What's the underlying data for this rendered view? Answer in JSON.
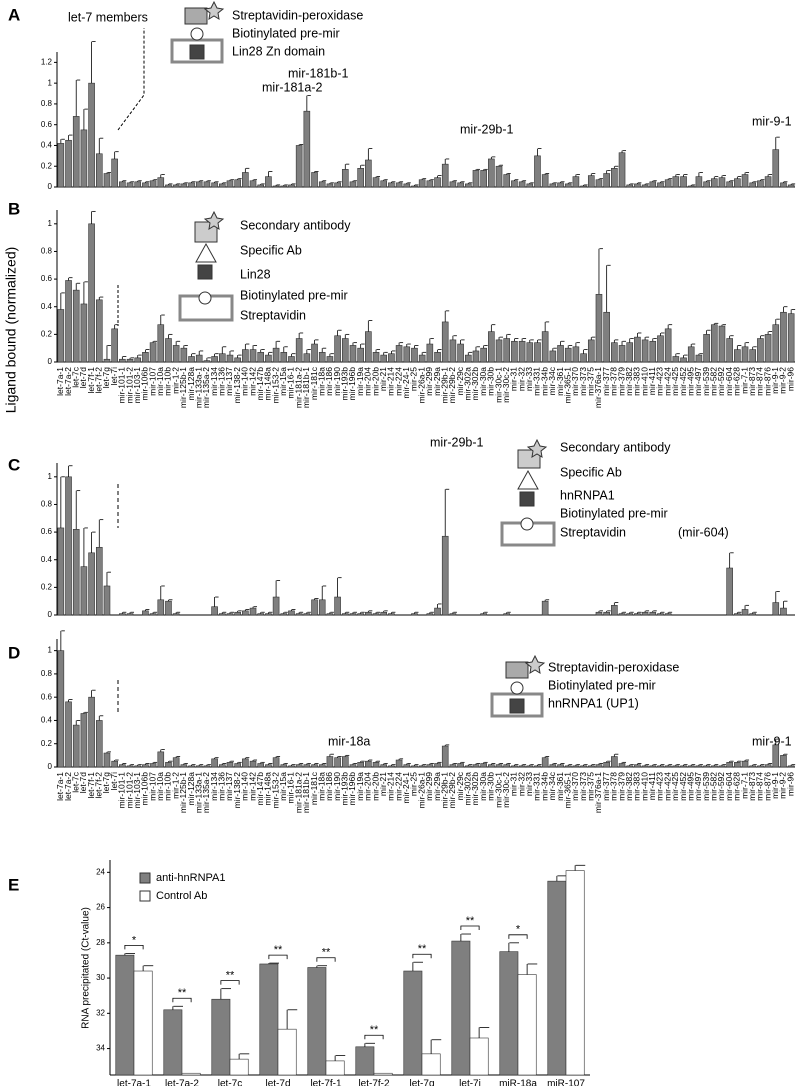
{
  "chart_data": [
    {
      "type": "bar",
      "panel": "A",
      "color": "#7f7f7f",
      "ylim": [
        0,
        1.3
      ],
      "yticks": [
        0,
        0.2,
        0.4,
        0.6,
        0.8,
        1,
        1.2
      ],
      "annotations": [
        "let-7 members",
        "Streptavidin-peroxidase",
        "Biotinylated pre-mir",
        "Lin28 Zn domain",
        "mir-181b-1",
        "mir-181a-2",
        "mir-29b-1",
        "mir-9-1"
      ],
      "values": [
        0.42,
        0.45,
        0.68,
        0.55,
        1.0,
        0.32,
        0.13,
        0.27,
        0.05,
        0.04,
        0.05,
        0.04,
        0.06,
        0.09,
        0.02,
        0.02,
        0.03,
        0.04,
        0.05,
        0.05,
        0.04,
        0.03,
        0.06,
        0.07,
        0.14,
        0.06,
        0.02,
        0.1,
        0.01,
        0.01,
        0.02,
        0.4,
        0.73,
        0.14,
        0.05,
        0.03,
        0.04,
        0.17,
        0.05,
        0.18,
        0.26,
        0.09,
        0.06,
        0.04,
        0.04,
        0.03,
        0.01,
        0.07,
        0.06,
        0.09,
        0.22,
        0.05,
        0.04,
        0.03,
        0.16,
        0.16,
        0.27,
        0.2,
        0.12,
        0.06,
        0.05,
        0.03,
        0.3,
        0.12,
        0.03,
        0.04,
        0.03,
        0.1,
        0.01,
        0.11,
        0.07,
        0.13,
        0.18,
        0.33,
        0.02,
        0.03,
        0.02,
        0.05,
        0.04,
        0.07,
        0.1,
        0.1,
        0.01,
        0.1,
        0.05,
        0.08,
        0.09,
        0.05,
        0.08,
        0.12,
        0.04,
        0.06,
        0.1,
        0.36,
        0.04,
        0.02
      ],
      "errors": [
        0.04,
        0.05,
        0.35,
        0.2,
        0.4,
        0.15,
        0.01,
        0.07,
        0.01,
        0.01,
        0.01,
        0.01,
        0.01,
        0.03,
        0.01,
        0.01,
        0.01,
        0.01,
        0.01,
        0.01,
        0.01,
        0.01,
        0.01,
        0.01,
        0.04,
        0.01,
        0.01,
        0.05,
        0.01,
        0.01,
        0.01,
        0.01,
        0.15,
        0.01,
        0.01,
        0.01,
        0.01,
        0.05,
        0.01,
        0.03,
        0.11,
        0.01,
        0.01,
        0.01,
        0.01,
        0.01,
        0.01,
        0.01,
        0.01,
        0.02,
        0.05,
        0.01,
        0.01,
        0.01,
        0.01,
        0.01,
        0.02,
        0.01,
        0.01,
        0.01,
        0.01,
        0.01,
        0.07,
        0.01,
        0.01,
        0.01,
        0.01,
        0.02,
        0.01,
        0.02,
        0.01,
        0.03,
        0.02,
        0.02,
        0.01,
        0.01,
        0.01,
        0.01,
        0.01,
        0.01,
        0.02,
        0.02,
        0.01,
        0.04,
        0.01,
        0.02,
        0.02,
        0.01,
        0.02,
        0.02,
        0.01,
        0.01,
        0.02,
        0.12,
        0.01,
        0.01
      ]
    },
    {
      "type": "bar",
      "panel": "B",
      "ylabel": "Ligand bound (normalized)",
      "color": "#7f7f7f",
      "ylim": [
        0,
        1.1
      ],
      "yticks": [
        0,
        0.2,
        0.4,
        0.6,
        0.8,
        1
      ],
      "annotations": [
        "Secondary antibody",
        "Specific Ab",
        "Lin28",
        "Biotinylated pre-mir",
        "Streptavidin"
      ],
      "categories": [
        "let-7a-1",
        "let-7a-2",
        "let-7c",
        "let-7d",
        "let-7f-1",
        "let-7f-2",
        "let-7g",
        "let-7i",
        "mir-101-1",
        "mir-101-2",
        "mir-103-1",
        "mir-106b",
        "mir-107",
        "mir-10a",
        "mir-10b",
        "mir-1-2",
        "mir-125b-1",
        "mir-128a",
        "mir-133a-1",
        "mir-135a-2",
        "mir-134",
        "mir-136",
        "mir-137",
        "mir-138-2",
        "mir-140",
        "mir-142",
        "mir-147b",
        "mir-148a",
        "mir-153-2",
        "mir-15a",
        "mir-16-1",
        "mir-181a-2",
        "mir-181b-1",
        "mir-181c",
        "mir-18a",
        "mir-186",
        "mir-190",
        "mir-193b",
        "mir-196b",
        "mir-19a",
        "mir-204",
        "mir-20b",
        "mir-21",
        "mir-214",
        "mir-224",
        "mir-24-1",
        "mir-25",
        "mir-26a-1",
        "mir-299",
        "mir-29a",
        "mir-29b-1",
        "mir-29b-2",
        "mir-29c",
        "mir-302a",
        "mir-302b",
        "mir-30a",
        "mir-30b",
        "mir-30c-1",
        "mir-30c-2",
        "mir-31",
        "mir-32",
        "mir-33",
        "mir-331",
        "mir-34b",
        "mir-34c",
        "mir-361",
        "mir-365-1",
        "mir-370",
        "mir-373",
        "mir-375",
        "mir-376a-1",
        "mir-377",
        "mir-378",
        "mir-379",
        "mir-382",
        "mir-383",
        "mir-410",
        "mir-411",
        "mir-423",
        "mir-424",
        "mir-425",
        "mir-452",
        "mir-495",
        "mir-497",
        "mir-539",
        "mir-582",
        "mir-592",
        "mir-604",
        "mir-628",
        "mir-7-1",
        "mir-873",
        "mir-874",
        "mir-876",
        "mir-9-1",
        "mir-9-2",
        "mir-96"
      ],
      "values": [
        0.38,
        0.59,
        0.52,
        0.42,
        1.0,
        0.45,
        0.02,
        0.24,
        0.02,
        0.02,
        0.03,
        0.07,
        0.14,
        0.27,
        0.17,
        0.12,
        0.1,
        0.04,
        0.05,
        0.01,
        0.04,
        0.06,
        0.05,
        0.03,
        0.09,
        0.09,
        0.07,
        0.05,
        0.1,
        0.07,
        0.04,
        0.17,
        0.06,
        0.13,
        0.07,
        0.04,
        0.19,
        0.17,
        0.12,
        0.1,
        0.22,
        0.07,
        0.05,
        0.06,
        0.12,
        0.11,
        0.1,
        0.05,
        0.13,
        0.07,
        0.29,
        0.16,
        0.13,
        0.05,
        0.08,
        0.1,
        0.22,
        0.16,
        0.17,
        0.15,
        0.15,
        0.14,
        0.14,
        0.22,
        0.08,
        0.12,
        0.1,
        0.11,
        0.06,
        0.16,
        0.49,
        0.36,
        0.14,
        0.12,
        0.14,
        0.18,
        0.16,
        0.15,
        0.19,
        0.24,
        0.04,
        0.03,
        0.11,
        0.05,
        0.2,
        0.27,
        0.26,
        0.17,
        0.09,
        0.11,
        0.09,
        0.17,
        0.2,
        0.27,
        0.36,
        0.35
      ],
      "errors": [
        0.12,
        0.02,
        0.05,
        0.16,
        0.09,
        0.02,
        0.1,
        0.03,
        0.02,
        0.01,
        0.02,
        0.02,
        0.01,
        0.07,
        0.03,
        0.03,
        0.02,
        0.02,
        0.03,
        0.02,
        0.02,
        0.05,
        0.03,
        0.02,
        0.04,
        0.03,
        0.02,
        0.02,
        0.05,
        0.04,
        0.02,
        0.04,
        0.03,
        0.03,
        0.03,
        0.02,
        0.04,
        0.03,
        0.02,
        0.03,
        0.08,
        0.02,
        0.02,
        0.02,
        0.02,
        0.02,
        0.02,
        0.02,
        0.04,
        0.02,
        0.08,
        0.03,
        0.03,
        0.02,
        0.03,
        0.02,
        0.05,
        0.02,
        0.03,
        0.02,
        0.02,
        0.02,
        0.02,
        0.07,
        0.02,
        0.03,
        0.02,
        0.03,
        0.03,
        0.02,
        0.33,
        0.34,
        0.02,
        0.03,
        0.03,
        0.03,
        0.02,
        0.02,
        0.02,
        0.03,
        0.02,
        0.02,
        0.02,
        0.01,
        0.03,
        0.01,
        0.01,
        0.02,
        0.03,
        0.03,
        0.02,
        0.02,
        0.02,
        0.04,
        0.04,
        0.03
      ]
    },
    {
      "type": "bar",
      "panel": "C",
      "color": "#7f7f7f",
      "ylim": [
        0,
        1.1
      ],
      "yticks": [
        0,
        0.2,
        0.4,
        0.6,
        0.8,
        1
      ],
      "annotations": [
        "mir-29b-1",
        "Secondary antibody",
        "Specific Ab",
        "hnRNPA1",
        "Biotinylated pre-mir",
        "Streptavidin",
        "(mir-604)"
      ],
      "values": [
        0.63,
        1.0,
        0.62,
        0.35,
        0.45,
        0.49,
        0.21,
        0,
        0.01,
        0.01,
        0,
        0.03,
        0.01,
        0.11,
        0.1,
        0.01,
        0,
        0,
        0,
        0,
        0.06,
        0.01,
        0.01,
        0.02,
        0.03,
        0.05,
        0.01,
        0.01,
        0.13,
        0.01,
        0.03,
        0.01,
        0.01,
        0.11,
        0.11,
        0.01,
        0.13,
        0.01,
        0.01,
        0.01,
        0.02,
        0.01,
        0.02,
        0.01,
        0,
        0,
        0.01,
        0,
        0.01,
        0.05,
        0.57,
        0.01,
        0,
        0,
        0,
        0.01,
        0,
        0,
        0.01,
        0,
        0,
        0,
        0,
        0.1,
        0,
        0,
        0,
        0,
        0,
        0,
        0.02,
        0.02,
        0.07,
        0.01,
        0.01,
        0.01,
        0.02,
        0.02,
        0.01,
        0.01,
        0,
        0,
        0,
        0,
        0,
        0,
        0,
        0.34,
        0.01,
        0.04,
        0.01,
        0,
        0,
        0.09,
        0.05,
        0
      ],
      "errors": [
        0.37,
        0.08,
        0.28,
        0.28,
        0.15,
        0.2,
        0.1,
        0,
        0.01,
        0.01,
        0,
        0.01,
        0.01,
        0.1,
        0.01,
        0.01,
        0,
        0,
        0,
        0,
        0.07,
        0.01,
        0.01,
        0.01,
        0.01,
        0.01,
        0.01,
        0.01,
        0.12,
        0.01,
        0.01,
        0.01,
        0.01,
        0.01,
        0.1,
        0.01,
        0.14,
        0.01,
        0.01,
        0.01,
        0.01,
        0.01,
        0.01,
        0.01,
        0,
        0,
        0.01,
        0,
        0.01,
        0.03,
        0.34,
        0.01,
        0,
        0,
        0,
        0.01,
        0,
        0,
        0.01,
        0,
        0,
        0,
        0,
        0.01,
        0,
        0,
        0,
        0,
        0,
        0,
        0.01,
        0.01,
        0.02,
        0.01,
        0.01,
        0.01,
        0.01,
        0.01,
        0.01,
        0.01,
        0,
        0,
        0,
        0,
        0,
        0,
        0,
        0.11,
        0.01,
        0.03,
        0.01,
        0,
        0,
        0.08,
        0.05,
        0
      ]
    },
    {
      "type": "bar",
      "panel": "D",
      "color": "#7f7f7f",
      "ylim": [
        0,
        1.1
      ],
      "yticks": [
        0,
        0.2,
        0.4,
        0.6,
        0.8,
        1
      ],
      "annotations": [
        "Streptavidin-peroxidase",
        "Biotinylated pre-mir",
        "hnRNPA1 (UP1)",
        "mir-18a",
        "mir-9-1"
      ],
      "categories": [
        "let-7a-1",
        "let-7a-2",
        "let-7c",
        "let-7d",
        "let-7f-1",
        "let-7f-2",
        "let-7g",
        "let-7i",
        "mir-101-1",
        "mir-101-2",
        "mir-103-1",
        "mir-106b",
        "mir-107",
        "mir-10a",
        "mir-10b",
        "mir-1-2",
        "mir-125b-1",
        "mir-128a",
        "mir-133a-1",
        "mir-135a-2",
        "mir-134",
        "mir-136",
        "mir-137",
        "mir-138-2",
        "mir-140",
        "mir-142",
        "mir-147b",
        "mir-148a",
        "mir-153-2",
        "mir-15a",
        "mir-16-1",
        "mir-181a-2",
        "mir-181b-1",
        "mir-181c",
        "mir-18a",
        "mir-186",
        "mir-190",
        "mir-193b",
        "mir-196b",
        "mir-19a",
        "mir-204",
        "mir-20b",
        "mir-21",
        "mir-214",
        "mir-224",
        "mir-24-1",
        "mir-25",
        "mir-26a-1",
        "mir-299",
        "mir-29a",
        "mir-29b-1",
        "mir-29b-2",
        "mir-29c",
        "mir-302a",
        "mir-302b",
        "mir-30a",
        "mir-30b",
        "mir-30c-1",
        "mir-30c-2",
        "mir-31",
        "mir-32",
        "mir-33",
        "mir-331",
        "mir-34b",
        "mir-34c",
        "mir-361",
        "mir-365-1",
        "mir-370",
        "mir-373",
        "mir-375",
        "mir-376a-1",
        "mir-377",
        "mir-378",
        "mir-379",
        "mir-382",
        "mir-383",
        "mir-410",
        "mir-411",
        "mir-423",
        "mir-424",
        "mir-425",
        "mir-452",
        "mir-495",
        "mir-497",
        "mir-539",
        "mir-582",
        "mir-592",
        "mir-604",
        "mir-628",
        "mir-7-1",
        "mir-873",
        "mir-874",
        "mir-876",
        "mir-9-1",
        "mir-9-2",
        "mir-96"
      ],
      "values": [
        1.0,
        0.56,
        0.36,
        0.46,
        0.6,
        0.4,
        0.12,
        0.05,
        0.02,
        0.01,
        0.01,
        0.02,
        0.03,
        0.13,
        0.04,
        0.08,
        0.02,
        0.01,
        0.01,
        0.01,
        0.07,
        0.02,
        0.04,
        0.03,
        0.07,
        0.05,
        0.03,
        0.02,
        0.08,
        0.02,
        0.01,
        0.02,
        0.02,
        0.02,
        0.02,
        0.09,
        0.08,
        0.09,
        0.02,
        0.04,
        0.05,
        0.04,
        0.02,
        0.01,
        0.06,
        0.02,
        0.01,
        0.01,
        0.02,
        0.03,
        0.18,
        0.02,
        0.03,
        0.01,
        0.02,
        0.03,
        0.02,
        0.02,
        0.02,
        0.01,
        0.01,
        0.01,
        0.01,
        0.08,
        0.02,
        0.02,
        0.01,
        0.01,
        0.01,
        0.01,
        0.02,
        0.04,
        0.09,
        0.03,
        0.01,
        0.02,
        0.01,
        0.01,
        0.01,
        0.01,
        0.01,
        0.01,
        0.01,
        0.01,
        0.01,
        0.01,
        0.01,
        0.04,
        0.04,
        0.05,
        0.01,
        0.01,
        0.02,
        0.19,
        0.1,
        0.01
      ],
      "errors": [
        0.17,
        0.02,
        0.04,
        0.01,
        0.06,
        0.04,
        0.01,
        0.01,
        0.01,
        0.01,
        0.01,
        0.01,
        0.01,
        0.02,
        0.01,
        0.01,
        0.01,
        0.01,
        0.01,
        0.01,
        0.01,
        0.01,
        0.01,
        0.01,
        0.01,
        0.01,
        0.01,
        0.01,
        0.01,
        0.01,
        0.01,
        0.01,
        0.01,
        0.01,
        0.01,
        0.02,
        0.01,
        0.01,
        0.01,
        0.01,
        0.01,
        0.01,
        0.01,
        0.01,
        0.01,
        0.01,
        0.01,
        0.01,
        0.01,
        0.01,
        0.01,
        0.01,
        0.01,
        0.01,
        0.01,
        0.01,
        0.01,
        0.01,
        0.01,
        0.01,
        0.01,
        0.01,
        0.01,
        0.01,
        0.01,
        0.01,
        0.01,
        0.01,
        0.01,
        0.01,
        0.01,
        0.01,
        0.02,
        0.01,
        0.01,
        0.01,
        0.01,
        0.01,
        0.01,
        0.01,
        0.01,
        0.01,
        0.01,
        0.01,
        0.01,
        0.01,
        0.01,
        0.01,
        0.01,
        0.01,
        0.01,
        0.01,
        0.01,
        0.05,
        0.01,
        0.01
      ]
    },
    {
      "type": "bar",
      "panel": "E",
      "ylabel": "RNA precipitated (Ct-value)",
      "ylim": [
        35.5,
        23.3
      ],
      "yticks": [
        24,
        26,
        28,
        30,
        32,
        34
      ],
      "categories": [
        "let-7a-1",
        "let-7a-2",
        "let-7c",
        "let-7d",
        "let-7f-1",
        "let-7f-2",
        "let-7g",
        "let-7i",
        "miR-18a",
        "miR-107"
      ],
      "significance": [
        "*",
        "**",
        "**",
        "**",
        "**",
        "**",
        "**",
        "**",
        "*",
        null
      ],
      "series": [
        {
          "name": "anti-hnRNPA1",
          "color": "#7f7f7f",
          "values": [
            28.7,
            31.8,
            31.2,
            29.2,
            29.4,
            33.9,
            29.6,
            27.9,
            28.5,
            24.5
          ],
          "errors": [
            0.1,
            0.2,
            0.6,
            0.05,
            0.1,
            0.2,
            0.5,
            0.4,
            0.5,
            0.3
          ]
        },
        {
          "name": "Control Ab",
          "color": "#ffffff",
          "values": [
            29.6,
            35.4,
            34.6,
            32.9,
            34.7,
            35.4,
            34.3,
            33.4,
            29.8,
            23.9
          ],
          "errors": [
            0.3,
            0,
            0.3,
            1.1,
            0.3,
            0,
            0.8,
            0.6,
            0.6,
            0.3
          ]
        }
      ]
    }
  ]
}
